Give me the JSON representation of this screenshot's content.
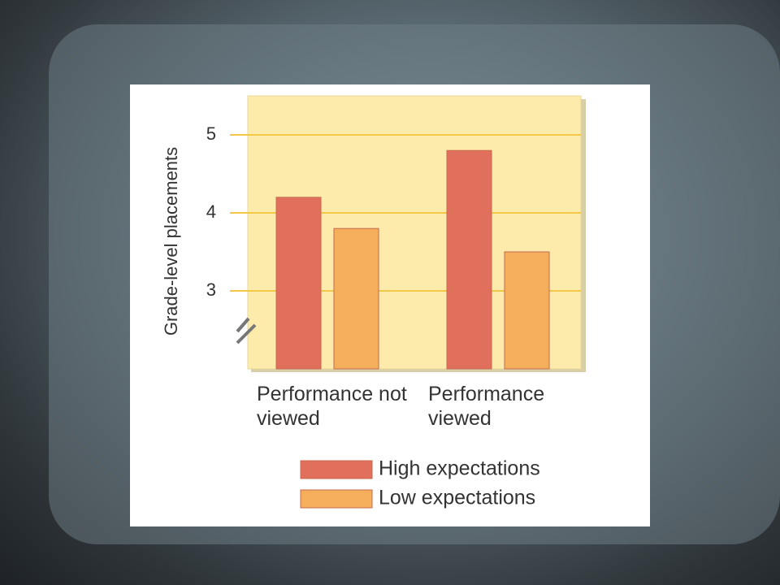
{
  "chart_data": {
    "type": "bar",
    "y_label": "Grade-level placements",
    "categories": [
      "Performance not viewed",
      "Performance viewed"
    ],
    "series": [
      {
        "name": "High expectations",
        "color": "#e06f5c",
        "values": [
          4.2,
          4.8
        ]
      },
      {
        "name": "Low expectations",
        "color": "#f4ae5c",
        "values": [
          3.8,
          3.5
        ]
      }
    ],
    "ylim": [
      2,
      5.5
    ],
    "yticks": [
      3,
      4,
      5
    ],
    "grid": true
  }
}
